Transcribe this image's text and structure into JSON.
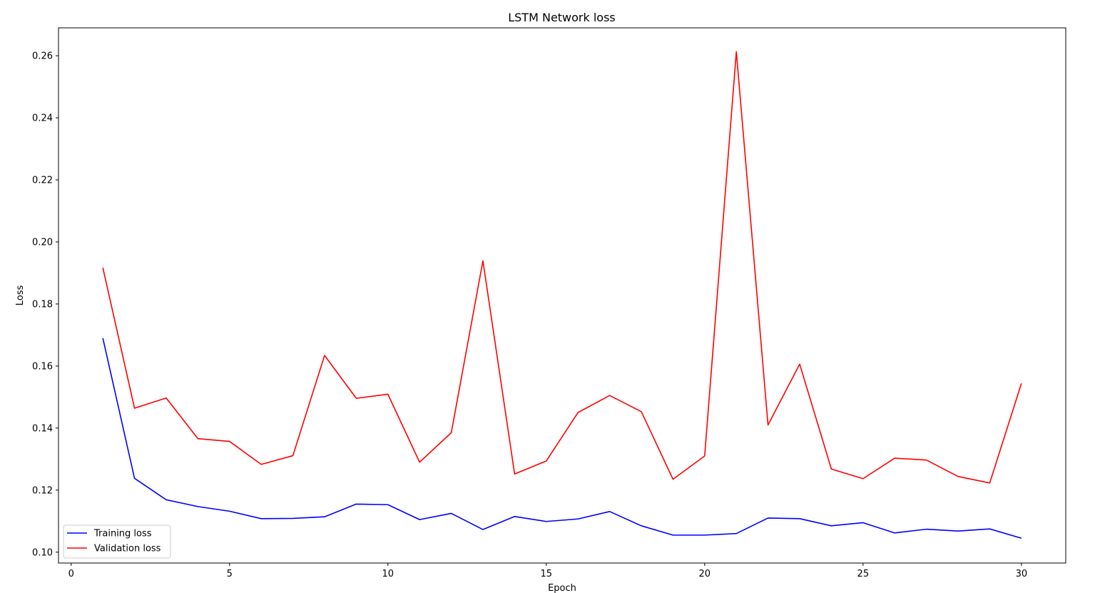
{
  "chart_data": {
    "type": "line",
    "title": "LSTM Network loss",
    "xlabel": "Epoch",
    "ylabel": "Loss",
    "xlim": [
      -0.4,
      31.4
    ],
    "ylim": [
      0.0965,
      0.269
    ],
    "xticks": [
      0,
      5,
      10,
      15,
      20,
      25,
      30
    ],
    "yticks": [
      0.1,
      0.12,
      0.14,
      0.16,
      0.18,
      0.2,
      0.22,
      0.24,
      0.26
    ],
    "grid": false,
    "legend_position": "bottom-left",
    "x": [
      1,
      2,
      3,
      4,
      5,
      6,
      7,
      8,
      9,
      10,
      11,
      12,
      13,
      14,
      15,
      16,
      17,
      18,
      19,
      20,
      21,
      22,
      23,
      24,
      25,
      26,
      27,
      28,
      29,
      30
    ],
    "series": [
      {
        "name": "Training loss",
        "color": "#0000ff",
        "values": [
          0.169,
          0.1238,
          0.1169,
          0.1147,
          0.1132,
          0.1108,
          0.1109,
          0.1114,
          0.1155,
          0.1153,
          0.1105,
          0.1125,
          0.1073,
          0.1115,
          0.1099,
          0.1107,
          0.1131,
          0.1085,
          0.1055,
          0.1055,
          0.106,
          0.111,
          0.1108,
          0.1085,
          0.1095,
          0.1062,
          0.1074,
          0.1068,
          0.1075,
          0.1045
        ]
      },
      {
        "name": "Validation loss",
        "color": "#ff0000",
        "values": [
          0.1917,
          0.1464,
          0.1497,
          0.1366,
          0.1357,
          0.1283,
          0.1311,
          0.1634,
          0.1496,
          0.1509,
          0.129,
          0.1385,
          0.1939,
          0.1252,
          0.1294,
          0.145,
          0.1505,
          0.1453,
          0.1235,
          0.131,
          0.2613,
          0.141,
          0.1606,
          0.1268,
          0.1237,
          0.1303,
          0.1297,
          0.1244,
          0.1223,
          0.1544
        ]
      }
    ]
  }
}
